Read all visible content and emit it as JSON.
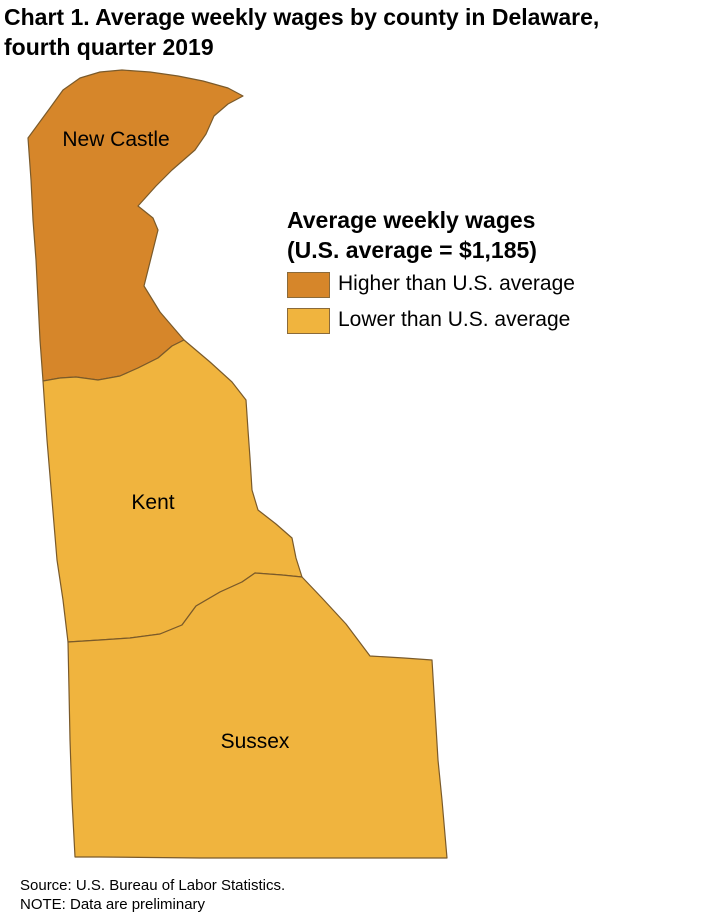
{
  "title": {
    "line1": "Chart 1. Average weekly wages by county in Delaware,",
    "line2": "fourth quarter 2019"
  },
  "legend": {
    "title_line1": "Average weekly wages",
    "title_line2": "(U.S. average = $1,185)",
    "items": [
      {
        "label": "Higher than U.S. average",
        "color": "#D6862A"
      },
      {
        "label": "Lower than U.S. average",
        "color": "#F0B43E"
      }
    ]
  },
  "counties": [
    {
      "name": "New Castle",
      "category": "Higher than U.S. average",
      "color": "#D6862A"
    },
    {
      "name": "Kent",
      "category": "Lower than U.S. average",
      "color": "#F0B43E"
    },
    {
      "name": "Sussex",
      "category": "Lower than U.S. average",
      "color": "#F0B43E"
    }
  ],
  "footnotes": {
    "source": "Source: U.S. Bureau of Labor Statistics.",
    "note": "NOTE: Data are preliminary"
  }
}
